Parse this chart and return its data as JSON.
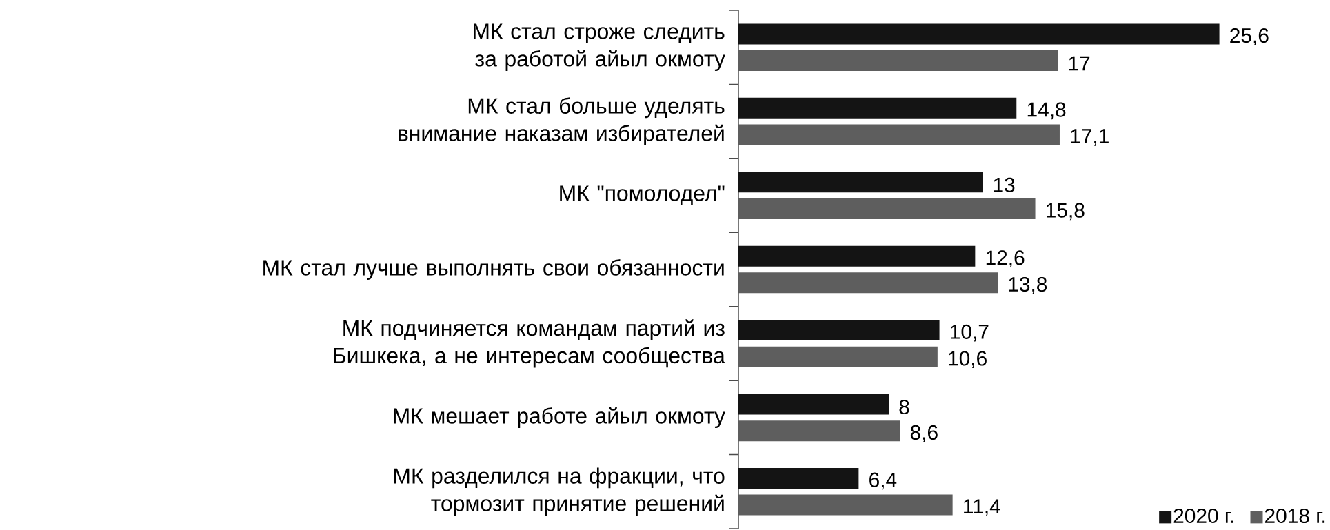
{
  "chart_data": {
    "type": "bar",
    "orientation": "horizontal",
    "legend": "bottom right",
    "tick_labels": "y",
    "categories": [
      "МК стал строже следить за работой айыл окмоту",
      "МК стал больше уделять внимание наказам избирателей",
      "МК \"помолодел\"",
      "МК стал лучше выполнять свои обязанности",
      "МК подчиняется командам партий из Бишкека, а не интересам сообщества",
      "МК мешает работе айыл окмоту",
      "МК разделился на фракции, что тормозит принятие решений"
    ],
    "series": [
      {
        "name": "2020 г.",
        "color": "#141414",
        "values": [
          25.6,
          14.8,
          13,
          12.6,
          10.7,
          8,
          6.4
        ],
        "value_labels": [
          "25,6",
          "14,8",
          "13",
          "12,6",
          "10,7",
          "8",
          "6,4"
        ]
      },
      {
        "name": "2018 г.",
        "color": "#5e5e5e",
        "values": [
          17,
          17.1,
          15.8,
          13.8,
          10.6,
          8.6,
          11.4
        ],
        "value_labels": [
          "17",
          "17,1",
          "15,8",
          "13,8",
          "10,6",
          "8,6",
          "11,4"
        ]
      }
    ]
  }
}
